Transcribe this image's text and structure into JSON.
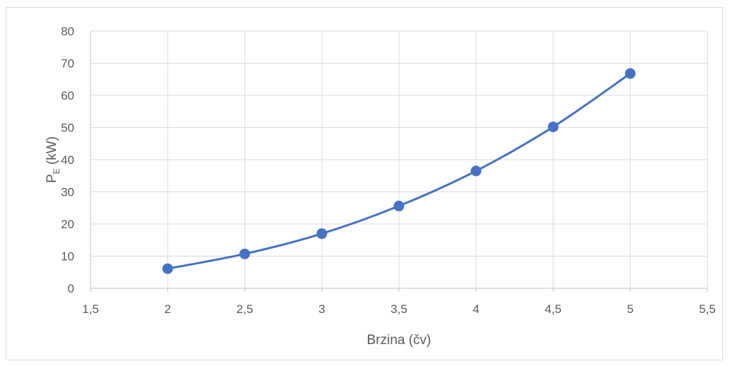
{
  "chart_data": {
    "type": "scatter",
    "title": "",
    "xlabel": "Brzina (čv)",
    "ylabel": {
      "main": "P",
      "subscript": "E",
      "unit": " (kW)"
    },
    "xlim": [
      1.5,
      5.5
    ],
    "ylim": [
      0,
      80
    ],
    "x_ticks": [
      1.5,
      2,
      2.5,
      3,
      3.5,
      4,
      4.5,
      5,
      5.5
    ],
    "x_tick_labels": [
      "1,5",
      "2",
      "2,5",
      "3",
      "3,5",
      "4",
      "4,5",
      "5",
      "5,5"
    ],
    "y_ticks": [
      0,
      10,
      20,
      30,
      40,
      50,
      60,
      70,
      80
    ],
    "y_tick_labels": [
      "0",
      "10",
      "20",
      "30",
      "40",
      "50",
      "60",
      "70",
      "80"
    ],
    "grid": true,
    "legend": "none",
    "series": [
      {
        "x": [
          2,
          2.5,
          3,
          3.5,
          4,
          4.5,
          5
        ],
        "y": [
          6.1,
          10.7,
          17.0,
          25.6,
          36.5,
          50.2,
          66.8
        ],
        "color": "#4472c4",
        "marker": "circle",
        "line": "smooth"
      }
    ]
  }
}
